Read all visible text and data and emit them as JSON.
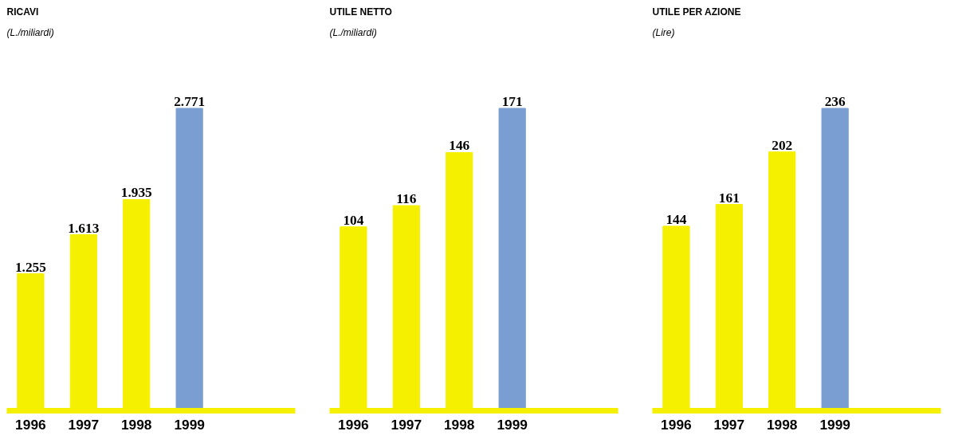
{
  "chart_data": [
    {
      "type": "bar",
      "title": "RICAVI",
      "subtitle": "(L./miliardi)",
      "categories": [
        "1996",
        "1997",
        "1998",
        "1999"
      ],
      "values": [
        1255,
        1613,
        1935,
        2771
      ],
      "value_labels": [
        "1.255",
        "1.613",
        "1.935",
        "2.771"
      ],
      "colors": [
        "#f5f000",
        "#f5f000",
        "#f5f000",
        "#7a9ed2"
      ]
    },
    {
      "type": "bar",
      "title": "UTILE NETTO",
      "subtitle": "(L./miliardi)",
      "categories": [
        "1996",
        "1997",
        "1998",
        "1999"
      ],
      "values": [
        104,
        116,
        146,
        171
      ],
      "data_labels": true,
      "colors": [
        "#f5f000",
        "#f5f000",
        "#f5f000",
        "#7a9ed2"
      ]
    },
    {
      "type": "bar",
      "title": "UTILE PER AZIONE",
      "subtitle": "(Lire)",
      "categories": [
        "1996",
        "1997",
        "1998",
        "1999"
      ],
      "values": [
        144,
        161,
        202,
        236
      ],
      "data_labels": true,
      "colors": [
        "#f5f000",
        "#f5f000",
        "#f5f000",
        "#7a9ed2"
      ]
    }
  ]
}
